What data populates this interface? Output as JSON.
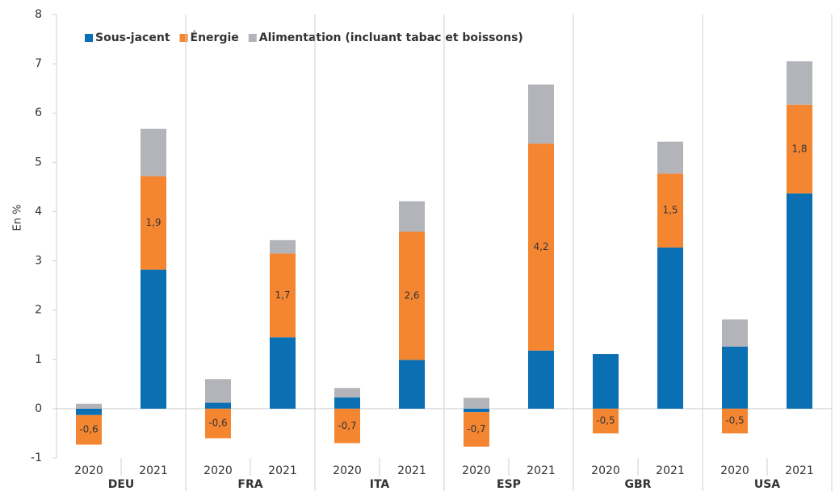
{
  "chart_data": {
    "type": "stacked-bar",
    "y_label": "En %",
    "groups": [
      "DEU",
      "FRA",
      "ITA",
      "ESP",
      "GBR",
      "USA"
    ],
    "categories": [
      "2020",
      "2021",
      "2020",
      "2021",
      "2020",
      "2021",
      "2020",
      "2021",
      "2020",
      "2021",
      "2020",
      "2021"
    ],
    "series": [
      {
        "name": "Sous-jacent",
        "color": "#0a6fb3",
        "values": [
          -0.13,
          2.82,
          0.12,
          1.45,
          0.23,
          0.99,
          -0.07,
          1.18,
          1.11,
          3.27,
          1.26,
          4.37
        ]
      },
      {
        "name": "Énergie",
        "color": "#f58631",
        "values": [
          -0.6,
          1.9,
          -0.6,
          1.7,
          -0.7,
          2.6,
          -0.7,
          4.2,
          -0.5,
          1.5,
          -0.5,
          1.8
        ],
        "value_labels": [
          "-0,6",
          "1,9",
          "-0,6",
          "1,7",
          "-0,7",
          "2,6",
          "-0,7",
          "4,2",
          "-0,5",
          "1,5",
          "-0,5",
          "1,8"
        ]
      },
      {
        "name": "Alimentation (incluant tabac et boissons)",
        "color": "#b3b4b9",
        "values": [
          0.1,
          0.96,
          0.48,
          0.27,
          0.19,
          0.62,
          0.22,
          1.2,
          0,
          0.65,
          0.55,
          0.88
        ]
      }
    ],
    "ylim": [
      -1,
      8
    ],
    "yticks": [
      -1,
      0,
      1,
      2,
      3,
      4,
      5,
      6,
      7,
      8
    ],
    "grid": false
  }
}
